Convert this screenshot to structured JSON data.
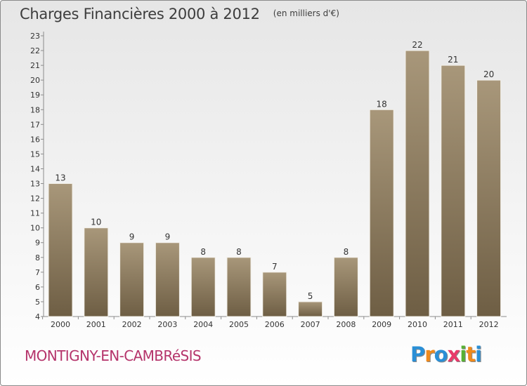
{
  "chart_data": {
    "type": "bar",
    "title": "Charges Financières 2000 à 2012",
    "subtitle": "(en milliers d'€)",
    "categories": [
      "2000",
      "2001",
      "2002",
      "2003",
      "2004",
      "2005",
      "2006",
      "2007",
      "2008",
      "2009",
      "2010",
      "2011",
      "2012"
    ],
    "values": [
      13,
      10,
      9,
      9,
      8,
      8,
      7,
      5,
      8,
      18,
      22,
      21,
      20
    ],
    "xlabel": "",
    "ylabel": "",
    "ylim": [
      4,
      23
    ],
    "yticks": [
      4,
      5,
      6,
      7,
      8,
      9,
      10,
      11,
      12,
      13,
      14,
      15,
      16,
      17,
      18,
      19,
      20,
      21,
      22,
      23
    ],
    "grid": false,
    "bar_color_top": "#a8977a",
    "bar_color_bottom": "#6e5e44"
  },
  "footer": {
    "commune": "MONTIGNY-EN-CAMBRéSIS",
    "logo": [
      "P",
      "r",
      "o",
      "x",
      "i",
      "t",
      "i"
    ],
    "logo_colors": [
      "#2a8fd6",
      "#f08a1c",
      "#2a8fd6",
      "#e83a6b",
      "#58b133",
      "#f08a1c",
      "#2a8fd6"
    ]
  }
}
